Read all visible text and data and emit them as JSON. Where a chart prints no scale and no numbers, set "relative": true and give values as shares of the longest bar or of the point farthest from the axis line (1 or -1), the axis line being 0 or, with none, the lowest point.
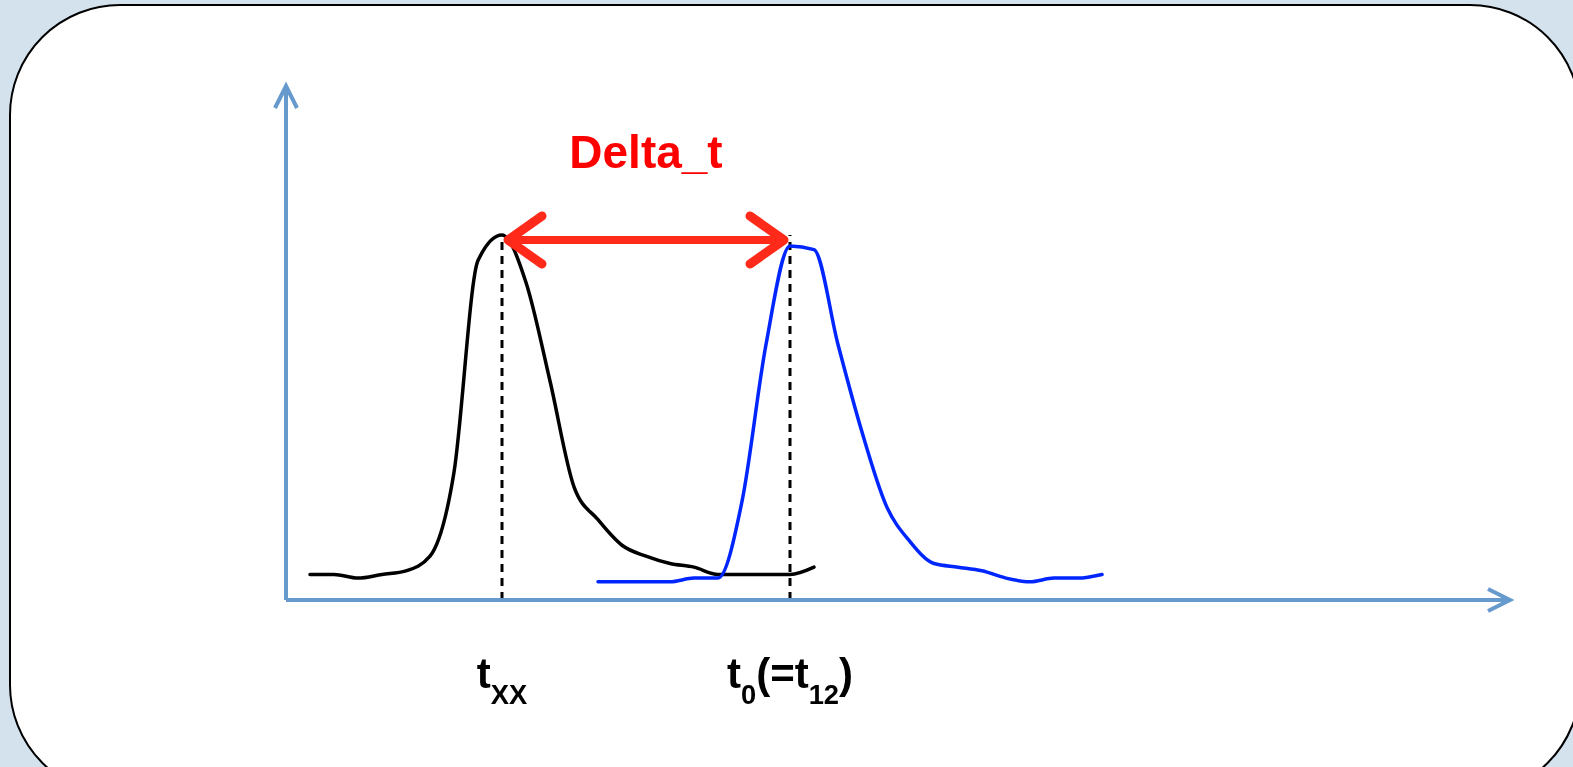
{
  "chart_data": {
    "type": "line",
    "relative": true,
    "categories": [
      null,
      null,
      null,
      null,
      null,
      null,
      null,
      null,
      null,
      "t$_{XX}$",
      null,
      null,
      null,
      null,
      null,
      null,
      null,
      null,
      null,
      null,
      null,
      "t$_{0}$(=t$_{12}$)",
      null,
      null,
      null,
      null,
      null,
      null,
      null,
      null,
      null,
      null,
      null,
      null,
      null,
      null,
      null,
      null,
      null,
      null,
      null,
      null,
      null,
      null,
      null,
      null,
      null,
      null,
      null,
      null,
      null
    ],
    "ref_lines": [
      {
        "axis": "x",
        "value": "t$_{XX}$",
        "line_style": "dashed",
        "color": "#000000"
      },
      {
        "axis": "x",
        "value": "t$_{0}$(=t$_{12}$)",
        "line_style": "dashed",
        "color": "#000000"
      }
    ],
    "annotations": [
      "Delta_t"
    ],
    "grid": false,
    "marker": "none",
    "line_style": "solid",
    "series": [
      {
        "color": "#000000",
        "values": [
          null,
          0.07,
          0.07,
          0.06,
          0.07,
          0.08,
          0.12,
          0.35,
          0.93,
          1,
          0.87,
          0.6,
          0.31,
          0.22,
          0.15,
          0.12,
          0.1,
          0.09,
          0.07,
          0.07,
          0.07,
          0.07,
          0.09,
          null,
          null,
          null,
          null,
          null,
          null,
          null,
          null,
          null,
          null,
          null,
          null,
          null,
          null,
          null,
          null,
          null,
          null,
          null,
          null,
          null,
          null,
          null,
          null,
          null,
          null,
          null,
          null
        ]
      },
      {
        "color": "#0026ff",
        "values": [
          null,
          null,
          null,
          null,
          null,
          null,
          null,
          null,
          null,
          null,
          null,
          null,
          null,
          0.05,
          0.05,
          0.05,
          0.05,
          0.06,
          0.06,
          0.27,
          0.7,
          0.97,
          0.96,
          0.7,
          0.46,
          0.26,
          0.16,
          0.1,
          0.09,
          0.08,
          0.06,
          0.05,
          0.06,
          0.06,
          0.07,
          null,
          null,
          null,
          null,
          null,
          null,
          null,
          null,
          null,
          null,
          null,
          null,
          null,
          null,
          null,
          null
        ]
      }
    ]
  }
}
